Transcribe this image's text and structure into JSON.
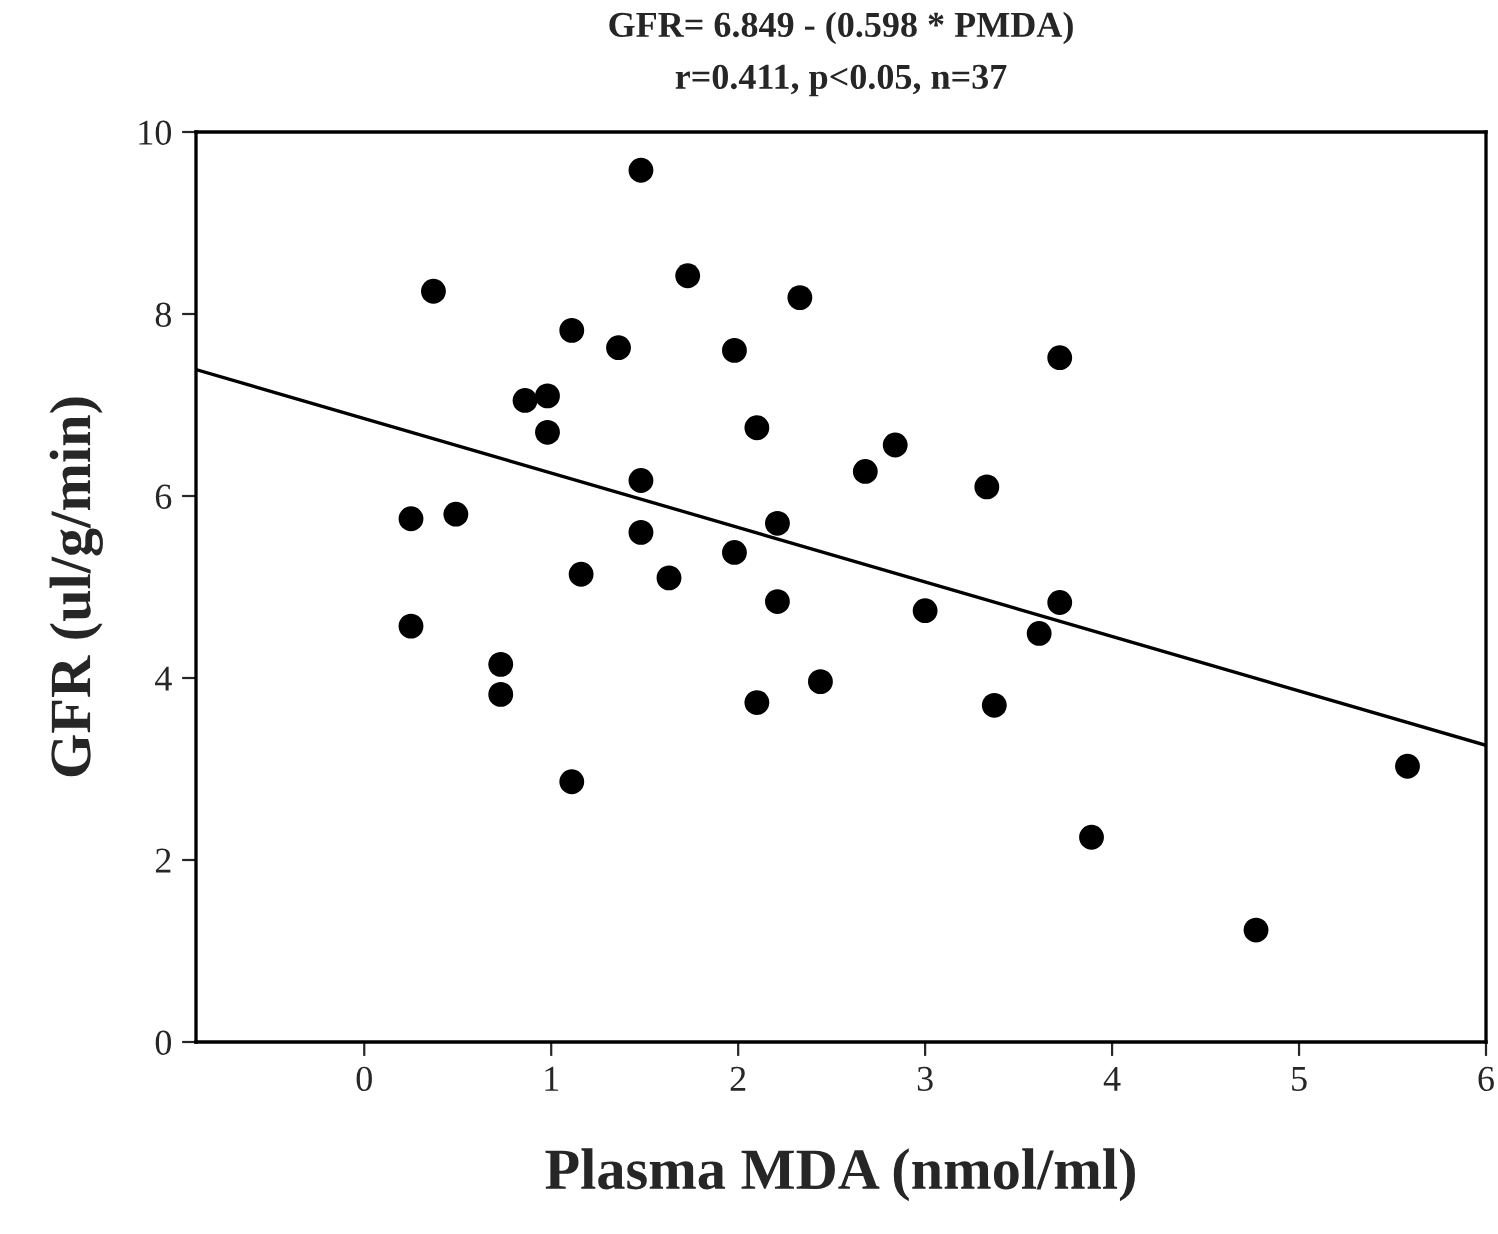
{
  "chart_data": {
    "type": "scatter",
    "title": "GFR= 6.849 - (0.598 * PMDA)",
    "subtitle": "r=0.411, p<0.05, n=37",
    "xlabel": "Plasma MDA (nmol/ml)",
    "ylabel": "GFR (ul/g/min)",
    "xlim": [
      -0.9,
      6
    ],
    "xticks": [
      0,
      1,
      2,
      3,
      4,
      5,
      6
    ],
    "ylim": [
      0,
      10
    ],
    "yticks": [
      0,
      2,
      4,
      6,
      8,
      10
    ],
    "grid": false,
    "legend": false,
    "series": [
      {
        "color": "#000000",
        "marker": "circle",
        "x": [
          0.25,
          0.25,
          0.37,
          0.49,
          0.73,
          0.73,
          0.86,
          0.98,
          0.98,
          1.11,
          1.11,
          1.16,
          1.36,
          1.48,
          1.48,
          1.48,
          1.63,
          1.73,
          1.98,
          1.98,
          2.1,
          2.1,
          2.21,
          2.21,
          2.33,
          2.44,
          2.68,
          2.84,
          3.0,
          3.33,
          3.37,
          3.61,
          3.72,
          3.72,
          3.89,
          4.77,
          5.58
        ],
        "values": [
          5.75,
          4.57,
          8.25,
          5.8,
          4.15,
          3.82,
          7.05,
          7.1,
          6.7,
          7.82,
          2.86,
          5.14,
          7.63,
          9.58,
          6.17,
          5.6,
          5.1,
          8.42,
          7.6,
          5.38,
          6.75,
          3.73,
          5.7,
          4.84,
          8.18,
          3.96,
          6.27,
          6.56,
          4.74,
          6.1,
          3.7,
          4.49,
          7.52,
          4.83,
          2.25,
          1.23,
          3.03
        ]
      },
      {
        "type": "line",
        "color": "#000000",
        "line_style": "solid",
        "marker": "none",
        "x": [
          -0.9,
          6
        ],
        "values": [
          7.39,
          3.26
        ]
      }
    ]
  }
}
